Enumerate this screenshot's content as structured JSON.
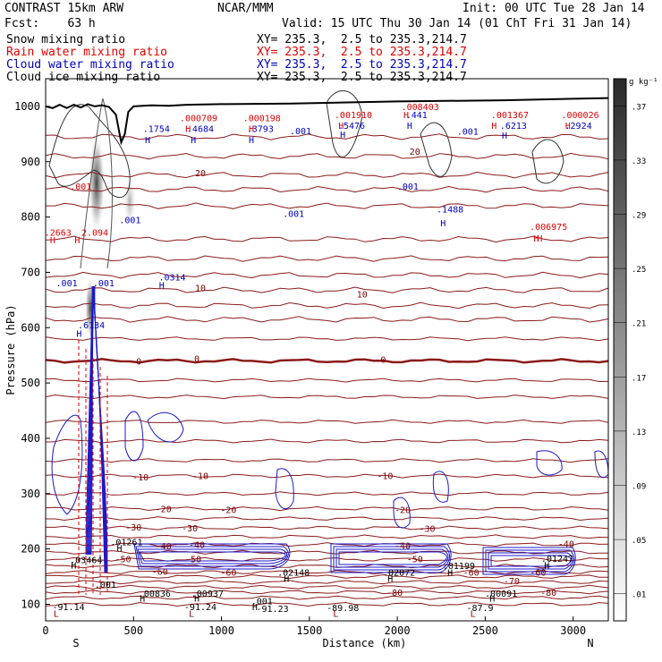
{
  "header": {
    "model": "CONTRAST 15km ARW",
    "org": "NCAR/MMM",
    "init": "Init: 00 UTC Tue 28 Jan 14",
    "fcst": "Fcst:    63 h",
    "valid": "Valid: 15 UTC Thu 30 Jan 14 (01 ChT Fri 31 Jan 14)"
  },
  "fields": [
    {
      "name": "Snow mixing ratio",
      "xy": "XY= 235.3,  2.5 to 235.3,214.7",
      "color": "#000000"
    },
    {
      "name": "Rain water mixing ratio",
      "xy": "XY= 235.3,  2.5 to 235.3,214.7",
      "color": "#e00000"
    },
    {
      "name": "Cloud water mixing ratio",
      "xy": "XY= 235.3,  2.5 to 235.3,214.7",
      "color": "#0000c0"
    },
    {
      "name": "Cloud ice mixing ratio",
      "xy": "XY= 235.3,  2.5 to 235.3,214.7",
      "color": "#000000"
    }
  ],
  "chart_data": {
    "type": "contour",
    "xlabel": "Distance (km)",
    "ylabel": "Pressure (hPa)",
    "xlim": [
      0,
      3200
    ],
    "ylim": [
      1050,
      70
    ],
    "x_ticks": [
      0,
      500,
      1000,
      1500,
      2000,
      2500,
      3000
    ],
    "y_ticks": [
      100,
      200,
      300,
      400,
      500,
      600,
      700,
      800,
      900,
      1000
    ],
    "x_end_labels": {
      "left": "S",
      "right": "N"
    },
    "colorbar": {
      "unit": "g kg⁻¹",
      "levels": [
        ".01",
        ".05",
        ".09",
        ".13",
        ".17",
        ".21",
        ".25",
        ".29",
        ".33",
        ".37"
      ]
    },
    "temperature_contours_C": [
      {
        "label": "-80",
        "p": 122
      },
      {
        "label": "-70",
        "p": 140
      },
      {
        "label": "-60",
        "p": 158
      },
      {
        "label": "-50",
        "p": 181
      },
      {
        "label": "-40",
        "p": 208
      },
      {
        "label": "-30",
        "p": 238
      },
      {
        "label": "-20",
        "p": 273
      },
      {
        "label": "-10",
        "p": 332
      },
      {
        "label": "0",
        "p": 540
      },
      {
        "label": "10",
        "p": 668
      },
      {
        "label": "20",
        "p": 876
      }
    ],
    "temperature_labels": [
      {
        "text": "-80",
        "x": 1985,
        "p": 122
      },
      {
        "text": "-80",
        "x": 2860,
        "p": 122
      },
      {
        "text": "-70",
        "x": 2650,
        "p": 143
      },
      {
        "text": "-60",
        "x": 2420,
        "p": 158
      },
      {
        "text": "-60",
        "x": 2800,
        "p": 158
      },
      {
        "text": "-60",
        "x": 650,
        "p": 160
      },
      {
        "text": "-60",
        "x": 1040,
        "p": 158
      },
      {
        "text": "-50",
        "x": 440,
        "p": 182
      },
      {
        "text": "-50",
        "x": 840,
        "p": 182
      },
      {
        "text": "-50",
        "x": 2100,
        "p": 182
      },
      {
        "text": "-40",
        "x": 670,
        "p": 206
      },
      {
        "text": "-40",
        "x": 860,
        "p": 208
      },
      {
        "text": "-40",
        "x": 2030,
        "p": 207
      },
      {
        "text": "-40",
        "x": 2960,
        "p": 210
      },
      {
        "text": "-30",
        "x": 500,
        "p": 240
      },
      {
        "text": "-30",
        "x": 820,
        "p": 238
      },
      {
        "text": "-30",
        "x": 2170,
        "p": 237
      },
      {
        "text": "-20",
        "x": 670,
        "p": 273
      },
      {
        "text": "-20",
        "x": 1040,
        "p": 271
      },
      {
        "text": "-20",
        "x": 2030,
        "p": 271
      },
      {
        "text": "-10",
        "x": 540,
        "p": 330
      },
      {
        "text": "-10",
        "x": 880,
        "p": 333
      },
      {
        "text": "-10",
        "x": 1930,
        "p": 333
      },
      {
        "text": "0",
        "x": 530,
        "p": 540
      },
      {
        "text": "0",
        "x": 860,
        "p": 545
      },
      {
        "text": "0",
        "x": 1920,
        "p": 543
      },
      {
        "text": "10",
        "x": 880,
        "p": 672
      },
      {
        "text": "10",
        "x": 1800,
        "p": 661
      },
      {
        "text": "20",
        "x": 880,
        "p": 880
      },
      {
        "text": "20",
        "x": 2100,
        "p": 919
      }
    ],
    "extrema_labels": [
      {
        "text": "L",
        "x": 60,
        "p": 84,
        "color": "#8b0000"
      },
      {
        "text": "-91.14",
        "x": 130,
        "p": 96,
        "color": "#000000"
      },
      {
        "text": "L",
        "x": 830,
        "p": 84,
        "color": "#8b0000"
      },
      {
        "text": "-91.24",
        "x": 880,
        "p": 96,
        "color": "#000000"
      },
      {
        "text": "-91.23",
        "x": 1290,
        "p": 93,
        "color": "#000000"
      },
      {
        "text": "L",
        "x": 1650,
        "p": 84,
        "color": "#8b0000"
      },
      {
        "text": "-89.98",
        "x": 1690,
        "p": 94,
        "color": "#000000"
      },
      {
        "text": "L",
        "x": 2430,
        "p": 84,
        "color": "#8b0000"
      },
      {
        "text": "-87.9",
        "x": 2470,
        "p": 94,
        "color": "#000000"
      },
      {
        "text": "H",
        "x": 550,
        "p": 111,
        "color": "#000000"
      },
      {
        "text": ".00836",
        "x": 620,
        "p": 120,
        "color": "#000000"
      },
      {
        "text": "H",
        "x": 860,
        "p": 111,
        "color": "#000000"
      },
      {
        "text": ".00937",
        "x": 920,
        "p": 120,
        "color": "#000000"
      },
      {
        "text": "H",
        "x": 1190,
        "p": 96,
        "color": "#000000"
      },
      {
        "text": ".001",
        "x": 1230,
        "p": 106,
        "color": "#000000"
      },
      {
        "text": ".001",
        "x": 340,
        "p": 136,
        "color": "#000000"
      },
      {
        "text": "H",
        "x": 1370,
        "p": 147,
        "color": "#000000"
      },
      {
        "text": ".02148",
        "x": 1410,
        "p": 158,
        "color": "#000000"
      },
      {
        "text": "H",
        "x": 1960,
        "p": 147,
        "color": "#000000"
      },
      {
        "text": ".02072",
        "x": 2010,
        "p": 158,
        "color": "#000000"
      },
      {
        "text": "H",
        "x": 2300,
        "p": 158,
        "color": "#000000"
      },
      {
        "text": ".01199",
        "x": 2350,
        "p": 170,
        "color": "#000000"
      },
      {
        "text": "H",
        "x": 2540,
        "p": 111,
        "color": "#000000"
      },
      {
        "text": ".00091",
        "x": 2590,
        "p": 120,
        "color": "#000000"
      },
      {
        "text": "H",
        "x": 2850,
        "p": 171,
        "color": "#000000"
      },
      {
        "text": ".01247",
        "x": 2910,
        "p": 183,
        "color": "#000000"
      },
      {
        "text": "H",
        "x": 160,
        "p": 171,
        "color": "#000000"
      },
      {
        "text": ".03464",
        "x": 230,
        "p": 181,
        "color": "#000000"
      },
      {
        "text": "H",
        "x": 420,
        "p": 202,
        "color": "#000000"
      },
      {
        "text": ".01261",
        "x": 460,
        "p": 213,
        "color": "#000000"
      },
      {
        "text": "H",
        "x": 190,
        "p": 590,
        "color": "#0000c0"
      },
      {
        "text": ".6134",
        "x": 260,
        "p": 605,
        "color": "#0000c0"
      },
      {
        "text": ".001",
        "x": 120,
        "p": 681,
        "color": "#0000c0"
      },
      {
        "text": ".001",
        "x": 330,
        "p": 681,
        "color": "#0000c0"
      },
      {
        "text": "H",
        "x": 660,
        "p": 677,
        "color": "#0000c0"
      },
      {
        "text": ".0314",
        "x": 720,
        "p": 692,
        "color": "#0000c0"
      },
      {
        "text": "H",
        "x": 40,
        "p": 759,
        "color": "#e00000"
      },
      {
        "text": ".2663",
        "x": 70,
        "p": 773,
        "color": "#e00000"
      },
      {
        "text": "H",
        "x": 180,
        "p": 759,
        "color": "#e00000"
      },
      {
        "text": "2.094",
        "x": 280,
        "p": 773,
        "color": "#e00000"
      },
      {
        "text": ".001",
        "x": 480,
        "p": 795,
        "color": "#0000c0"
      },
      {
        "text": ".001",
        "x": 1410,
        "p": 807,
        "color": "#0000c0"
      },
      {
        "text": ".001",
        "x": 2060,
        "p": 856,
        "color": "#0000c0"
      },
      {
        "text": ".001",
        "x": 200,
        "p": 856,
        "color": "#e00000"
      },
      {
        "text": "H",
        "x": 2260,
        "p": 790,
        "color": "#0000c0"
      },
      {
        "text": ".1488",
        "x": 2300,
        "p": 815,
        "color": "#0000c0"
      },
      {
        "text": "H",
        "x": 2790,
        "p": 762,
        "color": "#e00000"
      },
      {
        "text": "H",
        "x": 2810,
        "p": 762,
        "color": "#e00000"
      },
      {
        "text": ".006975",
        "x": 2860,
        "p": 783,
        "color": "#e00000"
      },
      {
        "text": "H",
        "x": 580,
        "p": 940,
        "color": "#0000c0"
      },
      {
        "text": ".1754",
        "x": 630,
        "p": 960,
        "color": "#0000c0"
      },
      {
        "text": "H",
        "x": 840,
        "p": 940,
        "color": "#0000c0"
      },
      {
        "text": "H",
        "x": 810,
        "p": 960,
        "color": "#e00000"
      },
      {
        "text": ".4684",
        "x": 880,
        "p": 960,
        "color": "#0000c0"
      },
      {
        "text": ".000709",
        "x": 870,
        "p": 980,
        "color": "#e00000"
      },
      {
        "text": "H",
        "x": 1170,
        "p": 940,
        "color": "#0000c0"
      },
      {
        "text": "H",
        "x": 1170,
        "p": 960,
        "color": "#e00000"
      },
      {
        "text": ".3793",
        "x": 1220,
        "p": 960,
        "color": "#0000c0"
      },
      {
        "text": ".000198",
        "x": 1230,
        "p": 980,
        "color": "#e00000"
      },
      {
        "text": ".001",
        "x": 1450,
        "p": 956,
        "color": "#0000c0"
      },
      {
        "text": "H",
        "x": 1690,
        "p": 950,
        "color": "#0000c0"
      },
      {
        "text": "H",
        "x": 1680,
        "p": 966,
        "color": "#e00000"
      },
      {
        "text": ".5476",
        "x": 1740,
        "p": 966,
        "color": "#0000c0"
      },
      {
        "text": ".001910",
        "x": 1750,
        "p": 985,
        "color": "#e00000"
      },
      {
        "text": "H",
        "x": 2070,
        "p": 966,
        "color": "#0000c0"
      },
      {
        "text": "H",
        "x": 2050,
        "p": 985,
        "color": "#e00000"
      },
      {
        "text": ".441",
        "x": 2110,
        "p": 985,
        "color": "#0000c0"
      },
      {
        "text": ".008403",
        "x": 2130,
        "p": 1000,
        "color": "#e00000"
      },
      {
        "text": ".001",
        "x": 2400,
        "p": 955,
        "color": "#0000c0"
      },
      {
        "text": "H",
        "x": 2610,
        "p": 948,
        "color": "#0000c0"
      },
      {
        "text": "H",
        "x": 2550,
        "p": 966,
        "color": "#e00000"
      },
      {
        "text": ".6213",
        "x": 2660,
        "p": 966,
        "color": "#0000c0"
      },
      {
        "text": ".001367",
        "x": 2640,
        "p": 985,
        "color": "#e00000"
      },
      {
        "text": "H",
        "x": 2970,
        "p": 966,
        "color": "#e00000"
      },
      {
        "text": ".2924",
        "x": 3030,
        "p": 966,
        "color": "#0000c0"
      },
      {
        "text": ".000026",
        "x": 3040,
        "p": 985,
        "color": "#e00000"
      }
    ],
    "terrain_km": [
      [
        0,
        1000
      ],
      [
        40,
        997
      ],
      [
        80,
        1003
      ],
      [
        120,
        997
      ],
      [
        160,
        1003
      ],
      [
        200,
        998
      ],
      [
        240,
        1004
      ],
      [
        280,
        1000
      ],
      [
        320,
        1002
      ],
      [
        360,
        999
      ],
      [
        400,
        985
      ],
      [
        430,
        935
      ],
      [
        450,
        950
      ],
      [
        470,
        990
      ],
      [
        500,
        1000
      ],
      [
        600,
        1002
      ],
      [
        700,
        1001
      ],
      [
        800,
        1003
      ],
      [
        1000,
        1004
      ],
      [
        1400,
        1005
      ],
      [
        2000,
        1009
      ],
      [
        2600,
        1011
      ],
      [
        3200,
        1015
      ]
    ]
  }
}
